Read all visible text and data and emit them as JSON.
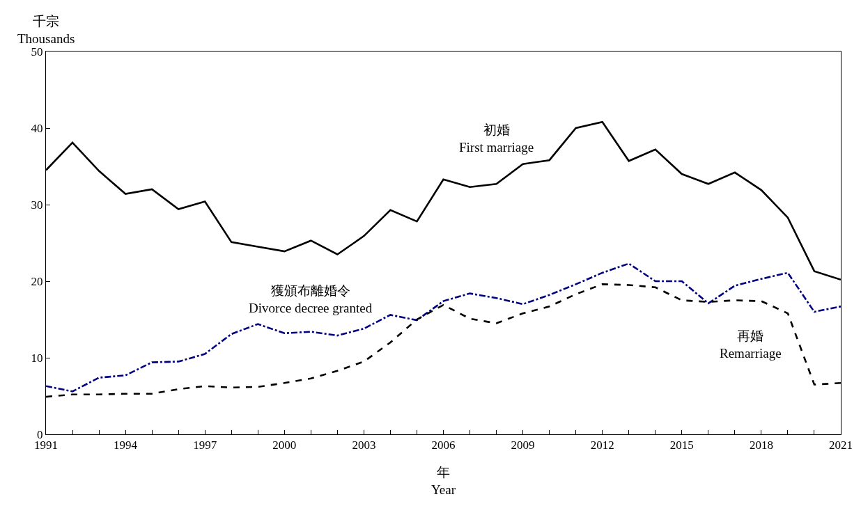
{
  "chart_data": {
    "type": "line",
    "xlabel": "年\nYear",
    "ylabel": "千宗\nThousands",
    "x": [
      1991,
      1992,
      1993,
      1994,
      1995,
      1996,
      1997,
      1998,
      1999,
      2000,
      2001,
      2002,
      2003,
      2004,
      2005,
      2006,
      2007,
      2008,
      2009,
      2010,
      2011,
      2012,
      2013,
      2014,
      2015,
      2016,
      2017,
      2018,
      2019,
      2020,
      2021
    ],
    "series": [
      {
        "name": "初婚\nFirst marriage",
        "color": "#000000",
        "line_style": "solid",
        "values": [
          34.5,
          38.1,
          34.4,
          31.4,
          32.0,
          29.4,
          30.4,
          25.1,
          24.5,
          23.9,
          25.3,
          23.5,
          25.9,
          29.3,
          27.8,
          33.3,
          32.3,
          32.7,
          35.3,
          35.8,
          40.0,
          40.8,
          35.7,
          37.2,
          34.0,
          32.7,
          34.2,
          31.9,
          28.3,
          21.3,
          20.2
        ]
      },
      {
        "name": "獲頒布離婚令\nDivorce decree granted",
        "color": "#000080",
        "line_style": "dashdot",
        "values": [
          6.3,
          5.6,
          7.4,
          7.7,
          9.4,
          9.5,
          10.5,
          13.1,
          14.4,
          13.2,
          13.4,
          12.9,
          13.8,
          15.6,
          14.9,
          17.4,
          18.4,
          17.8,
          17.0,
          18.2,
          19.6,
          21.1,
          22.3,
          20.0,
          20.0,
          17.1,
          19.4,
          20.3,
          21.1,
          16.0,
          16.7
        ]
      },
      {
        "name": "再婚\nRemarriage",
        "color": "#000000",
        "line_style": "dashed",
        "values": [
          4.9,
          5.2,
          5.2,
          5.3,
          5.3,
          5.9,
          6.3,
          6.1,
          6.2,
          6.7,
          7.3,
          8.3,
          9.5,
          12.0,
          15.0,
          16.9,
          15.1,
          14.5,
          15.8,
          16.7,
          18.3,
          19.6,
          19.5,
          19.2,
          17.5,
          17.3,
          17.5,
          17.4,
          15.8,
          6.5,
          6.7
        ]
      }
    ],
    "xlim": [
      1991,
      2021
    ],
    "xticks": [
      1991,
      {
        "value": 1992,
        "label": null
      },
      {
        "value": 1993,
        "label": null
      },
      1994,
      {
        "value": 1995,
        "label": null
      },
      {
        "value": 1996,
        "label": null
      },
      1997,
      {
        "value": 1998,
        "label": null
      },
      {
        "value": 1999,
        "label": null
      },
      2000,
      {
        "value": 2001,
        "label": null
      },
      {
        "value": 2002,
        "label": null
      },
      2003,
      {
        "value": 2004,
        "label": null
      },
      {
        "value": 2005,
        "label": null
      },
      2006,
      {
        "value": 2007,
        "label": null
      },
      {
        "value": 2008,
        "label": null
      },
      2009,
      {
        "value": 2010,
        "label": null
      },
      {
        "value": 2011,
        "label": null
      },
      2012,
      {
        "value": 2013,
        "label": null
      },
      {
        "value": 2014,
        "label": null
      },
      2015,
      {
        "value": 2016,
        "label": null
      },
      {
        "value": 2017,
        "label": null
      },
      2018,
      {
        "value": 2019,
        "label": null
      },
      {
        "value": 2020,
        "label": null
      },
      2021
    ],
    "ylim": [
      0,
      50
    ],
    "yticks": [
      0,
      10,
      20,
      30,
      40,
      50
    ],
    "legend": false
  }
}
